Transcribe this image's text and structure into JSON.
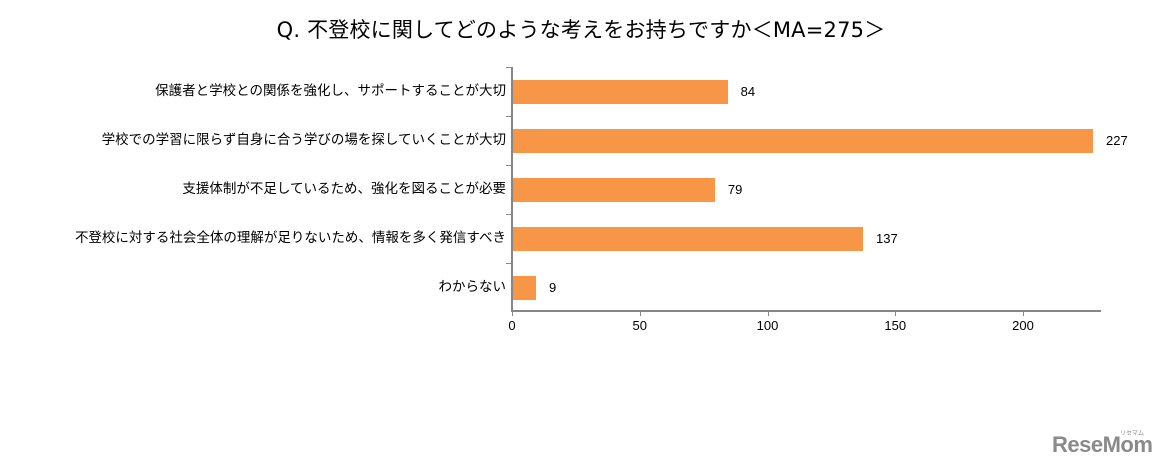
{
  "chart_data": {
    "type": "bar",
    "orientation": "horizontal",
    "title": "Q. 不登校に関してどのような考えをお持ちですか＜MA=275＞",
    "xlabel": "",
    "ylabel": "",
    "categories": [
      "保護者と学校との関係を強化し、サポートすることが大切",
      "学校での学習に限らず自身に合う学びの場を探していくことが大切",
      "支援体制が不足しているため、強化を図ることが必要",
      "不登校に対する社会全体の理解が足りないため、情報を多く発信すべき",
      "わからない"
    ],
    "values": [
      84,
      227,
      79,
      137,
      9
    ],
    "value_labels": [
      "84",
      "227",
      "79",
      "137",
      "9"
    ],
    "xlim": [
      0,
      230
    ],
    "x_ticks": [
      0,
      50,
      100,
      150,
      200
    ],
    "x_tick_labels": [
      "0",
      "50",
      "100",
      "150",
      "200"
    ],
    "grid": false,
    "legend": "none",
    "bar_color": "#F79646"
  },
  "watermark": {
    "text": "ReseMom",
    "subtext": "リセマム"
  }
}
